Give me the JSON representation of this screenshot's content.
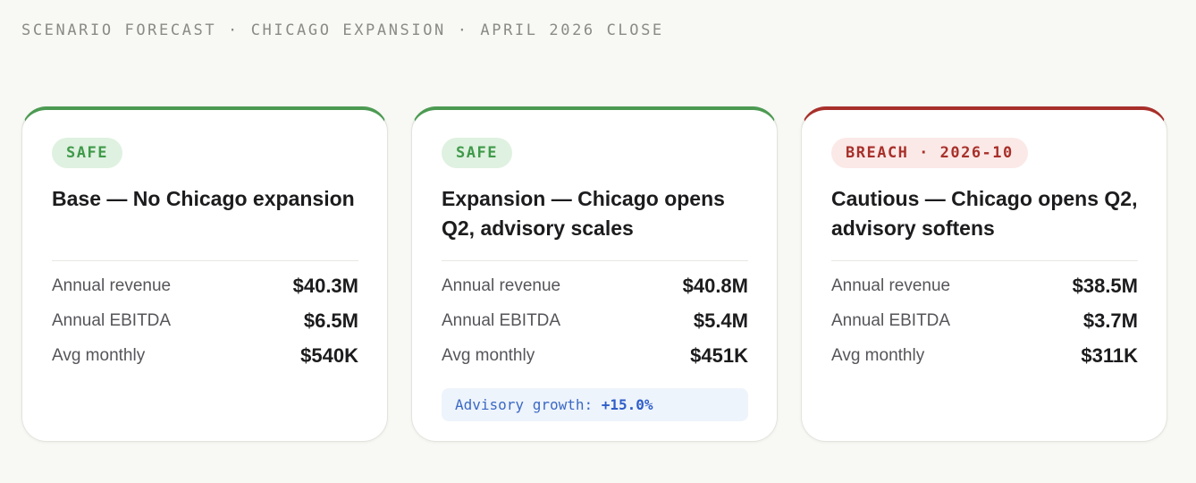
{
  "header": {
    "title": "SCENARIO FORECAST · CHICAGO EXPANSION · APRIL 2026 CLOSE"
  },
  "colors": {
    "safe": "#4c9a52",
    "breach": "#a8302a"
  },
  "scenarios": [
    {
      "status": "safe",
      "badge": "SAFE",
      "title": "Base — No Chicago expansion",
      "metrics": [
        {
          "label": "Annual revenue",
          "value": "$40.3M"
        },
        {
          "label": "Annual EBITDA",
          "value": "$6.5M"
        },
        {
          "label": "Avg monthly",
          "value": "$540K"
        }
      ]
    },
    {
      "status": "safe",
      "badge": "SAFE",
      "title": "Expansion — Chicago opens Q2, advisory scales",
      "metrics": [
        {
          "label": "Annual revenue",
          "value": "$40.8M"
        },
        {
          "label": "Annual EBITDA",
          "value": "$5.4M"
        },
        {
          "label": "Avg monthly",
          "value": "$451K"
        }
      ],
      "note": {
        "label": "Advisory growth:",
        "value": "+15.0%"
      }
    },
    {
      "status": "breach",
      "badge": "BREACH · 2026-10",
      "title": "Cautious — Chicago opens Q2, advisory softens",
      "metrics": [
        {
          "label": "Annual revenue",
          "value": "$38.5M"
        },
        {
          "label": "Annual EBITDA",
          "value": "$3.7M"
        },
        {
          "label": "Avg monthly",
          "value": "$311K"
        }
      ]
    }
  ]
}
